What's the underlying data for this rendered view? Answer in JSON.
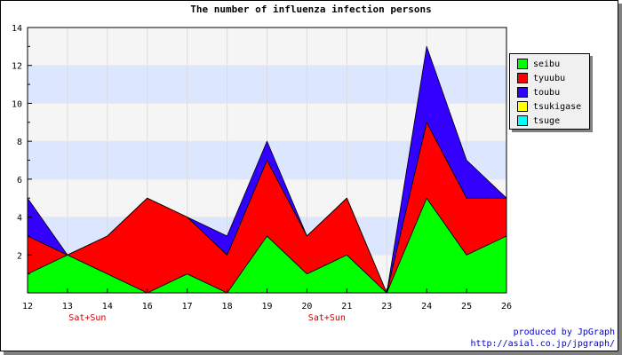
{
  "chart_data": {
    "type": "area",
    "stacked": true,
    "title": "The number of influenza infection persons",
    "x": [
      "12",
      "13",
      "14",
      "16",
      "17",
      "18",
      "19",
      "20",
      "21",
      "23",
      "24",
      "25",
      "26"
    ],
    "weekend_marks": [
      {
        "between": [
          "13",
          "14"
        ],
        "label": "Sat+Sun"
      },
      {
        "between": [
          "20",
          "21"
        ],
        "label": "Sat+Sun"
      }
    ],
    "ylim": [
      0,
      14
    ],
    "yticks": [
      2,
      4,
      6,
      8,
      10,
      12,
      14
    ],
    "legend_position": "right",
    "series": [
      {
        "name": "seibu",
        "color": "#00ff00",
        "values": [
          1,
          2,
          1,
          0,
          1,
          0,
          3,
          1,
          2,
          0,
          5,
          2,
          3
        ]
      },
      {
        "name": "tyuubu",
        "color": "#ff0000",
        "values": [
          2,
          0,
          2,
          5,
          3,
          2,
          4,
          2,
          3,
          0,
          4,
          3,
          2
        ]
      },
      {
        "name": "toubu",
        "color": "#3300ff",
        "values": [
          2,
          0,
          0,
          0,
          0,
          1,
          1,
          0,
          0,
          0,
          4,
          2,
          0
        ]
      },
      {
        "name": "tsukigase",
        "color": "#ffff00",
        "values": [
          0,
          0,
          0,
          0,
          0,
          0,
          0,
          0,
          0,
          0,
          0,
          0,
          0
        ]
      },
      {
        "name": "tsuge",
        "color": "#00ffff",
        "values": [
          0,
          0,
          0,
          0,
          0,
          0,
          0,
          0,
          0,
          0,
          0,
          0,
          0
        ]
      }
    ]
  },
  "credit": {
    "line1": "produced by JpGraph",
    "line2": "http://asial.co.jp/jpgraph/"
  }
}
